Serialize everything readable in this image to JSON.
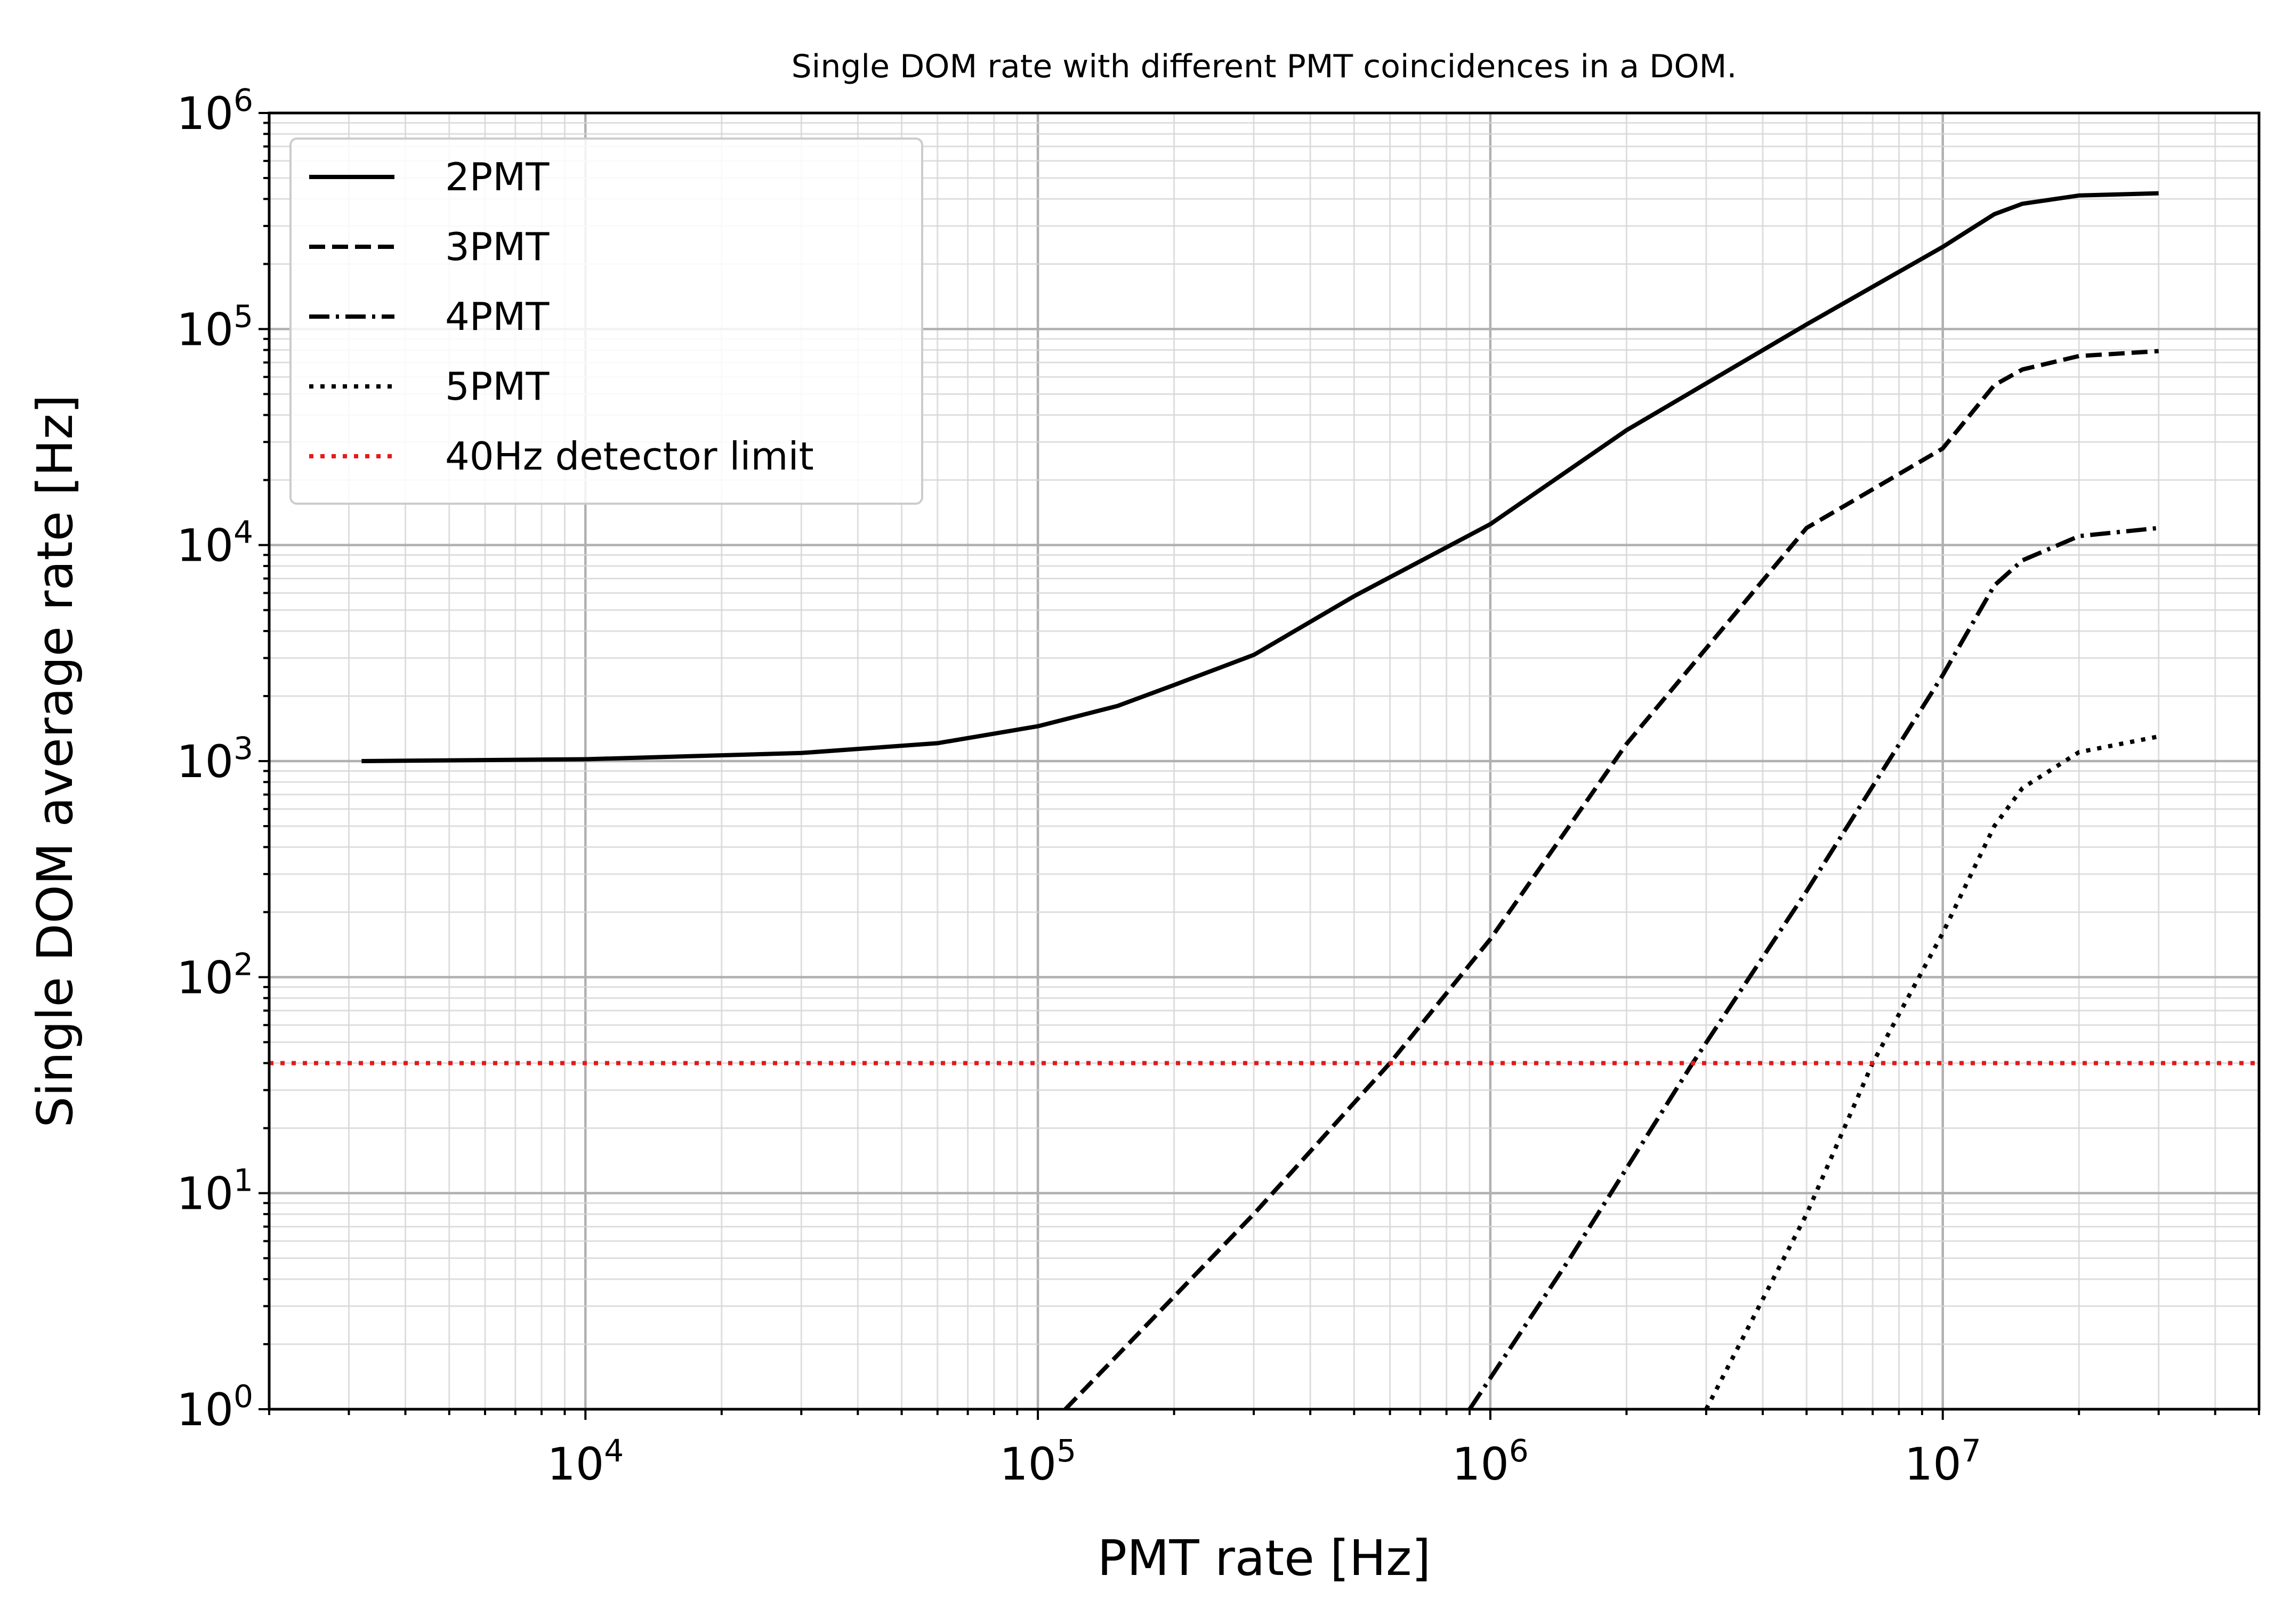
{
  "chart_data": {
    "type": "line",
    "title": "Single DOM rate with different PMT coincidences in a DOM.",
    "xlabel": "PMT rate [Hz]",
    "ylabel": "Single DOM average rate [Hz]",
    "xscale": "log",
    "yscale": "log",
    "xlim": [
      2000,
      50000000
    ],
    "ylim": [
      1,
      1000000
    ],
    "grid": "major and minor",
    "legend_position": "upper-left",
    "x_tick_labels": [
      {
        "value": 10000,
        "base": "10",
        "exp": "4"
      },
      {
        "value": 100000,
        "base": "10",
        "exp": "5"
      },
      {
        "value": 1000000,
        "base": "10",
        "exp": "6"
      },
      {
        "value": 10000000,
        "base": "10",
        "exp": "7"
      }
    ],
    "y_tick_labels": [
      {
        "value": 1,
        "base": "10",
        "exp": "0"
      },
      {
        "value": 10,
        "base": "10",
        "exp": "1"
      },
      {
        "value": 100,
        "base": "10",
        "exp": "2"
      },
      {
        "value": 1000,
        "base": "10",
        "exp": "3"
      },
      {
        "value": 10000,
        "base": "10",
        "exp": "4"
      },
      {
        "value": 100000,
        "base": "10",
        "exp": "5"
      },
      {
        "value": 1000000,
        "base": "10",
        "exp": "6"
      }
    ],
    "series": [
      {
        "name": "2PMT",
        "style": "solid",
        "color": "#000000",
        "points": [
          [
            3200,
            1000
          ],
          [
            10000,
            1020
          ],
          [
            30000,
            1090
          ],
          [
            60000,
            1210
          ],
          [
            100000,
            1450
          ],
          [
            150000,
            1800
          ],
          [
            200000,
            2250
          ],
          [
            300000,
            3100
          ],
          [
            500000,
            5800
          ],
          [
            1000000,
            12500
          ],
          [
            2000000,
            34000
          ],
          [
            5000000,
            105000
          ],
          [
            10000000,
            240000
          ],
          [
            13000000,
            340000
          ],
          [
            15000000,
            380000
          ],
          [
            20000000,
            415000
          ],
          [
            30000000,
            425000
          ]
        ]
      },
      {
        "name": "3PMT",
        "style": "dashed",
        "color": "#000000",
        "points": [
          [
            115000,
            1
          ],
          [
            300000,
            8
          ],
          [
            600000,
            40
          ],
          [
            1000000,
            150
          ],
          [
            2000000,
            1200
          ],
          [
            5000000,
            12000
          ],
          [
            10000000,
            28000
          ],
          [
            13000000,
            55000
          ],
          [
            15000000,
            65000
          ],
          [
            20000000,
            75000
          ],
          [
            30000000,
            79000
          ]
        ]
      },
      {
        "name": "4PMT",
        "style": "dashdot",
        "color": "#000000",
        "points": [
          [
            900000,
            1
          ],
          [
            1500000,
            5
          ],
          [
            2800000,
            40
          ],
          [
            5000000,
            250
          ],
          [
            10000000,
            2500
          ],
          [
            13000000,
            6500
          ],
          [
            15000000,
            8500
          ],
          [
            20000000,
            11000
          ],
          [
            30000000,
            12000
          ]
        ]
      },
      {
        "name": "5PMT",
        "style": "dotted",
        "color": "#000000",
        "points": [
          [
            3000000,
            1
          ],
          [
            5000000,
            8
          ],
          [
            7000000,
            40
          ],
          [
            10000000,
            160
          ],
          [
            13000000,
            500
          ],
          [
            15000000,
            750
          ],
          [
            20000000,
            1100
          ],
          [
            30000000,
            1300
          ]
        ]
      },
      {
        "name": "40Hz detector limit",
        "style": "dotted",
        "color": "#e41a1c",
        "points": [
          [
            2000,
            40
          ],
          [
            50000000,
            40
          ]
        ]
      }
    ]
  }
}
